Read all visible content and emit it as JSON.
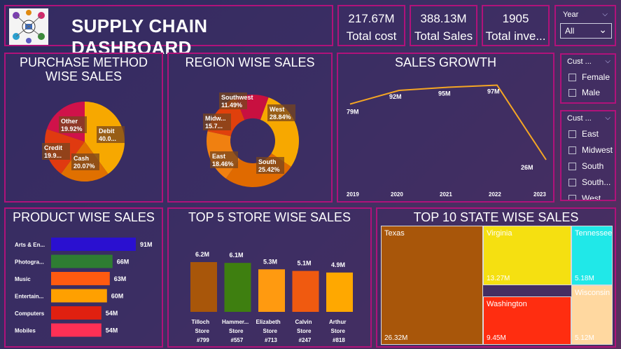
{
  "header": {
    "title": "SUPPLY CHAIN DASHBOARD",
    "logo": "supply-chain-logo"
  },
  "kpis": [
    {
      "value": "217.67M",
      "label": "Total cost"
    },
    {
      "value": "388.13M",
      "label": "Total Sales"
    },
    {
      "value": "1905",
      "label": "Total inve..."
    }
  ],
  "year_slicer": {
    "label": "Year",
    "selected": "All"
  },
  "gender_slicer": {
    "label": "Cust ...",
    "options": [
      "Female",
      "Male"
    ]
  },
  "region_slicer": {
    "label": "Cust ...",
    "options": [
      "East",
      "Midwest",
      "South",
      "South...",
      "West"
    ]
  },
  "colors": {
    "accent_border": "#b0127a",
    "line": "#f5a623"
  },
  "panels": {
    "purchase": "PURCHASE METHOD WISE SALES",
    "region": "REGION WISE SALES",
    "growth": "SALES GROWTH",
    "product": "PRODUCT WISE SALES",
    "store": "TOP 5 STORE WISE SALES",
    "state": "TOP 10 STATE WISE SALES"
  },
  "chart_data": [
    {
      "type": "pie",
      "title": "PURCHASE METHOD WISE SALES",
      "slices": [
        {
          "label": "Debit",
          "value_label": "40.0...",
          "value": 40.0,
          "color": "#f7a800"
        },
        {
          "label": "Cash",
          "value_label": "20.07%",
          "value": 20.07,
          "color": "#e07000"
        },
        {
          "label": "Credit",
          "value_label": "19.9...",
          "value": 19.94,
          "color": "#e03a10"
        },
        {
          "label": "Other",
          "value_label": "19.92%",
          "value": 19.92,
          "color": "#d0124a"
        }
      ]
    },
    {
      "type": "pie",
      "title": "REGION WISE SALES",
      "slices": [
        {
          "label": "West",
          "value_label": "28.84%",
          "value": 28.84,
          "color": "#f7a800"
        },
        {
          "label": "South",
          "value_label": "25.42%",
          "value": 25.42,
          "color": "#e06a00"
        },
        {
          "label": "East",
          "value_label": "18.46%",
          "value": 18.46,
          "color": "#f08010"
        },
        {
          "label": "Midw...",
          "value_label": "15.7...",
          "value": 15.7,
          "color": "#e0400c"
        },
        {
          "label": "Southwest",
          "value_label": "11.49%",
          "value": 11.49,
          "color": "#c81040"
        }
      ]
    },
    {
      "type": "line",
      "title": "SALES GROWTH",
      "x": [
        "2019",
        "2020",
        "2021",
        "2022",
        "2023"
      ],
      "values": [
        79,
        92,
        95,
        97,
        26
      ],
      "value_labels": [
        "79M",
        "92M",
        "95M",
        "97M",
        "26M"
      ]
    },
    {
      "type": "bar",
      "title": "PRODUCT WISE SALES",
      "categories": [
        "Arts & En...",
        "Photogra...",
        "Music",
        "Entertain...",
        "Computers",
        "Mobiles"
      ],
      "values": [
        91,
        66,
        63,
        60,
        54,
        54
      ],
      "value_labels": [
        "91M",
        "66M",
        "63M",
        "60M",
        "54M",
        "54M"
      ],
      "colors": [
        "#2a10d0",
        "#2e7d32",
        "#ff5a10",
        "#ffa000",
        "#e02010",
        "#ff3055"
      ]
    },
    {
      "type": "bar",
      "title": "TOP 5 STORE WISE SALES",
      "categories": [
        [
          "Tilloch",
          "Store",
          "#799"
        ],
        [
          "Hammer...",
          "Store",
          "#557"
        ],
        [
          "Elizabeth",
          "Store",
          "#713"
        ],
        [
          "Calvin",
          "Store",
          "#247"
        ],
        [
          "Arthur",
          "Store",
          "#818"
        ]
      ],
      "values": [
        6.2,
        6.1,
        5.3,
        5.1,
        4.9
      ],
      "value_labels": [
        "6.2M",
        "6.1M",
        "5.3M",
        "5.1M",
        "4.9M"
      ],
      "colors": [
        "#a8560a",
        "#3e7f10",
        "#ff9a10",
        "#f05a10",
        "#ffa800"
      ]
    },
    {
      "type": "heatmap",
      "title": "TOP 10 STATE WISE SALES",
      "cells": [
        {
          "name": "Texas",
          "value_label": "26.32M",
          "value": 26.32,
          "color": "#a8560a"
        },
        {
          "name": "Virginia",
          "value_label": "13.27M",
          "value": 13.27,
          "color": "#f5e011"
        },
        {
          "name": "Washington",
          "value_label": "9.45M",
          "value": 9.45,
          "color": "#ff2d10"
        },
        {
          "name": "Tennessee",
          "value_label": "5.18M",
          "value": 5.18,
          "color": "#20e8e8"
        },
        {
          "name": "Wisconsin",
          "value_label": "5.12M",
          "value": 5.12,
          "color": "#ffd8a0"
        }
      ]
    }
  ]
}
